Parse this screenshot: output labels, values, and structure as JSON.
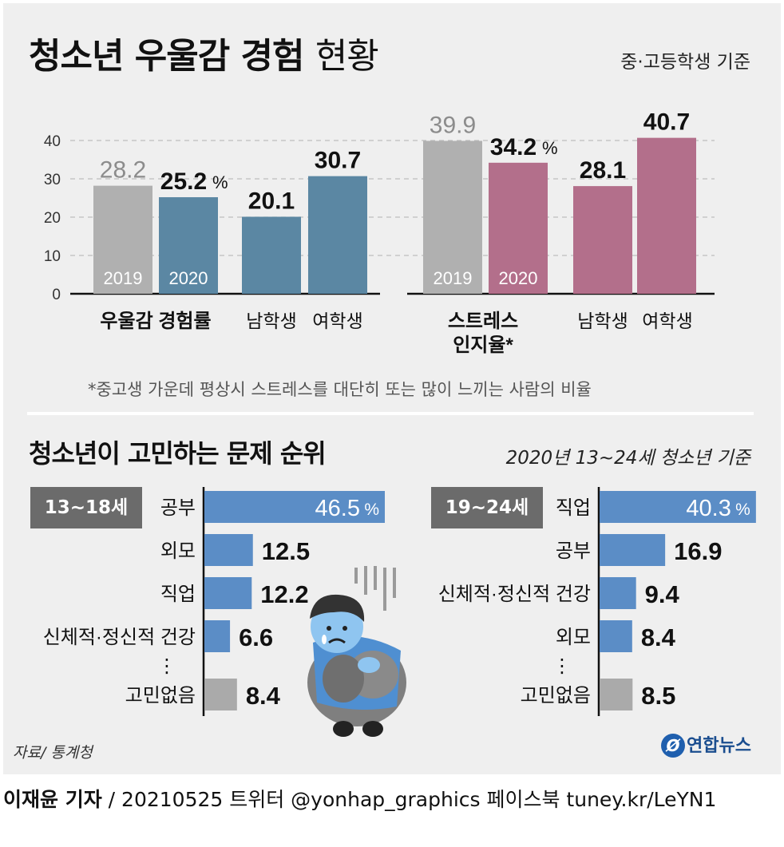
{
  "header": {
    "title_bold": "청소년 우울감 경험",
    "title_light": "현황",
    "basis": "중·고등학생 기준"
  },
  "footnote": "*중고생 가운데 평상시 스트레스를 대단히 또는 많이 느끼는 사람의 비율",
  "section2": {
    "title": "청소년이 고민하는 문제 순위",
    "basis": "2020년 13~24세  청소년 기준"
  },
  "footer": {
    "source": "자료/ 통계청",
    "logo": "연합뉴스",
    "logo_mark": "Ø",
    "credit_bold": "이재윤 기자",
    "credit_rest": " / 20210525   트위터 @yonhap_graphics  페이스북 tuney.kr/LeYN1"
  },
  "colors": {
    "gray": "#b0b0b0",
    "blue": "#5b87a3",
    "pink": "#b36f8b",
    "bar_blue": "#5b8dc6",
    "bar_gray": "#aaaaaa"
  },
  "chart_data": [
    {
      "type": "bar",
      "title": "청소년 우울감 경험 현황",
      "ylim": [
        0,
        40
      ],
      "yticks": [
        0,
        10,
        20,
        30,
        40
      ],
      "groups": [
        {
          "label": "우울감 경험률",
          "bars": [
            {
              "category": "2019",
              "value": 28.2,
              "label": "28.2",
              "color_key": "gray",
              "inner_label": "2019"
            },
            {
              "category": "2020",
              "value": 25.2,
              "label": "25.2",
              "unit": "%",
              "color_key": "blue",
              "inner_label": "2020"
            }
          ]
        },
        {
          "label": "남학생",
          "bars": [
            {
              "category": "남학생",
              "value": 20.1,
              "label": "20.1",
              "color_key": "blue"
            }
          ]
        },
        {
          "label": "여학생",
          "bars": [
            {
              "category": "여학생",
              "value": 30.7,
              "label": "30.7",
              "color_key": "blue"
            }
          ]
        },
        {
          "label": "스트레스 인지율*",
          "label_lines": [
            "스트레스",
            "인지율*"
          ],
          "bars": [
            {
              "category": "2019",
              "value": 39.9,
              "label": "39.9",
              "color_key": "gray",
              "inner_label": "2019"
            },
            {
              "category": "2020",
              "value": 34.2,
              "label": "34.2",
              "unit": "%",
              "color_key": "pink",
              "inner_label": "2020"
            }
          ]
        },
        {
          "label": "남학생",
          "bars": [
            {
              "category": "남학생",
              "value": 28.1,
              "label": "28.1",
              "color_key": "pink"
            }
          ]
        },
        {
          "label": "여학생",
          "bars": [
            {
              "category": "여학생",
              "value": 40.7,
              "label": "40.7",
              "color_key": "pink"
            }
          ]
        }
      ]
    },
    {
      "type": "bar",
      "orientation": "horizontal",
      "title": "13~18세",
      "unit": "%",
      "max": 46.5,
      "categories": [
        "공부",
        "외모",
        "직업",
        "신체적·정신적 건강",
        "고민없음"
      ],
      "values": [
        46.5,
        12.5,
        12.2,
        6.6,
        8.4
      ],
      "labels": [
        "46.5",
        "12.5",
        "12.2",
        "6.6",
        "8.4"
      ],
      "gap_marker": "⋮"
    },
    {
      "type": "bar",
      "orientation": "horizontal",
      "title": "19~24세",
      "unit": "%",
      "max": 46.5,
      "categories": [
        "직업",
        "공부",
        "신체적·정신적 건강",
        "외모",
        "고민없음"
      ],
      "values": [
        40.3,
        16.9,
        9.4,
        8.4,
        8.5
      ],
      "labels": [
        "40.3",
        "16.9",
        "9.4",
        "8.4",
        "8.5"
      ],
      "gap_marker": "⋮"
    }
  ]
}
